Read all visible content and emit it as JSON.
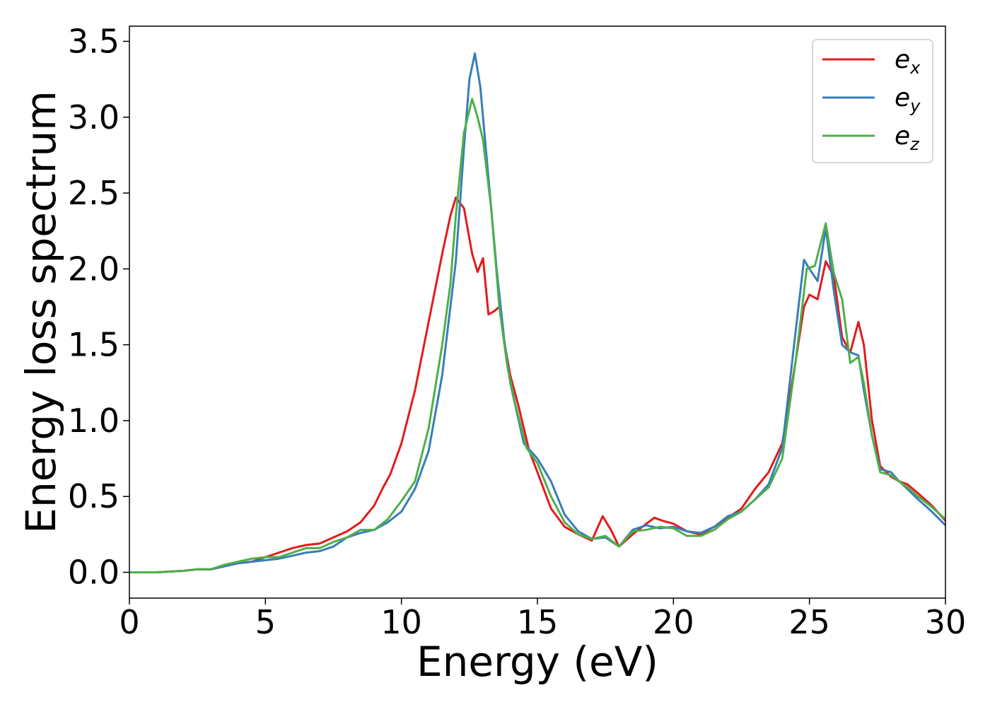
{
  "chart_data": {
    "type": "line",
    "title": "",
    "xlabel": "Energy (eV)",
    "ylabel": "Energy loss spectrum",
    "xlim": [
      0,
      30
    ],
    "ylim": [
      -0.17,
      3.6
    ],
    "xticks": [
      "0",
      "5",
      "10",
      "15",
      "20",
      "25",
      "30"
    ],
    "yticks": [
      "0.0",
      "0.5",
      "1.0",
      "1.5",
      "2.0",
      "2.5",
      "3.0",
      "3.5"
    ],
    "grid": false,
    "legend_position": "top-right",
    "series": [
      {
        "name": "e_x",
        "label_base": "e",
        "label_sub": "x",
        "color": "#e41a1c",
        "x": [
          0,
          1,
          2,
          2.5,
          3,
          3.5,
          4,
          4.5,
          5,
          5.5,
          6,
          6.5,
          7,
          7.5,
          8,
          8.5,
          9,
          9.3,
          9.6,
          10,
          10.5,
          11,
          11.5,
          11.8,
          12,
          12.3,
          12.6,
          12.8,
          13,
          13.2,
          13.4,
          13.6,
          13.8,
          14,
          14.3,
          14.7,
          15,
          15.5,
          16,
          16.5,
          17,
          17.4,
          17.7,
          18,
          18.5,
          19,
          19.3,
          19.6,
          20,
          20.5,
          21,
          21.5,
          22,
          22.5,
          23,
          23.5,
          24,
          24.5,
          24.8,
          25,
          25.3,
          25.6,
          25.9,
          26.2,
          26.5,
          26.8,
          27,
          27.3,
          27.6,
          28,
          28.3,
          28.6,
          29,
          29.5,
          30
        ],
        "y": [
          0,
          0,
          0.01,
          0.02,
          0.02,
          0.04,
          0.06,
          0.07,
          0.1,
          0.13,
          0.16,
          0.18,
          0.19,
          0.23,
          0.27,
          0.33,
          0.44,
          0.55,
          0.65,
          0.85,
          1.2,
          1.65,
          2.1,
          2.35,
          2.47,
          2.4,
          2.1,
          1.98,
          2.07,
          1.7,
          1.72,
          1.75,
          1.5,
          1.3,
          1.1,
          0.8,
          0.66,
          0.42,
          0.3,
          0.25,
          0.21,
          0.37,
          0.28,
          0.17,
          0.25,
          0.32,
          0.36,
          0.34,
          0.32,
          0.27,
          0.25,
          0.3,
          0.36,
          0.42,
          0.55,
          0.66,
          0.85,
          1.4,
          1.75,
          1.83,
          1.8,
          2.05,
          1.95,
          1.55,
          1.45,
          1.65,
          1.5,
          1.0,
          0.7,
          0.63,
          0.6,
          0.58,
          0.52,
          0.44,
          0.34
        ]
      },
      {
        "name": "e_y",
        "label_base": "e",
        "label_sub": "y",
        "color": "#377eb8",
        "x": [
          0,
          1,
          2,
          2.5,
          3,
          3.5,
          4,
          4.5,
          5,
          5.5,
          6,
          6.5,
          7,
          7.5,
          8,
          8.5,
          9,
          9.5,
          10,
          10.5,
          11,
          11.5,
          12,
          12.3,
          12.5,
          12.7,
          12.9,
          13.2,
          13.5,
          13.8,
          14,
          14.5,
          15,
          15.5,
          16,
          16.5,
          17,
          17.5,
          18,
          18.5,
          19,
          19.5,
          20,
          20.5,
          21,
          21.5,
          22,
          22.5,
          23,
          23.5,
          24,
          24.5,
          24.8,
          25,
          25.3,
          25.6,
          25.9,
          26.2,
          26.5,
          26.8,
          27,
          27.3,
          27.6,
          28,
          28.3,
          28.6,
          29,
          29.5,
          30
        ],
        "y": [
          0,
          0,
          0.01,
          0.02,
          0.02,
          0.04,
          0.06,
          0.07,
          0.08,
          0.09,
          0.11,
          0.13,
          0.14,
          0.17,
          0.23,
          0.26,
          0.28,
          0.33,
          0.4,
          0.55,
          0.8,
          1.3,
          2.05,
          2.8,
          3.25,
          3.42,
          3.2,
          2.6,
          2.0,
          1.5,
          1.25,
          0.85,
          0.75,
          0.6,
          0.38,
          0.27,
          0.22,
          0.23,
          0.17,
          0.28,
          0.31,
          0.29,
          0.3,
          0.27,
          0.26,
          0.3,
          0.37,
          0.4,
          0.48,
          0.58,
          0.82,
          1.6,
          2.06,
          2.0,
          1.92,
          2.27,
          1.85,
          1.5,
          1.45,
          1.43,
          1.2,
          0.9,
          0.68,
          0.66,
          0.6,
          0.55,
          0.48,
          0.4,
          0.31
        ]
      },
      {
        "name": "e_z",
        "label_base": "e",
        "label_sub": "z",
        "color": "#4daf4a",
        "x": [
          0,
          1,
          2,
          2.5,
          3,
          3.5,
          4,
          4.5,
          5,
          5.5,
          6,
          6.5,
          7,
          7.5,
          8,
          8.5,
          9,
          9.5,
          10,
          10.5,
          11,
          11.5,
          11.8,
          12,
          12.3,
          12.6,
          12.8,
          13,
          13.3,
          13.6,
          13.9,
          14.2,
          14.6,
          15,
          15.5,
          16,
          16.5,
          17,
          17.5,
          18,
          18.5,
          19,
          19.5,
          20,
          20.5,
          21,
          21.5,
          22,
          22.5,
          23,
          23.5,
          24,
          24.5,
          24.9,
          25.2,
          25.6,
          25.9,
          26.2,
          26.5,
          26.8,
          27,
          27.3,
          27.6,
          28,
          28.3,
          28.6,
          29,
          29.5,
          30
        ],
        "y": [
          0,
          0,
          0.01,
          0.02,
          0.02,
          0.05,
          0.07,
          0.09,
          0.1,
          0.1,
          0.13,
          0.16,
          0.16,
          0.2,
          0.23,
          0.28,
          0.28,
          0.35,
          0.47,
          0.6,
          0.95,
          1.5,
          1.9,
          2.35,
          2.9,
          3.12,
          3.0,
          2.85,
          2.4,
          1.75,
          1.35,
          1.1,
          0.82,
          0.72,
          0.5,
          0.33,
          0.25,
          0.22,
          0.24,
          0.17,
          0.27,
          0.28,
          0.3,
          0.29,
          0.24,
          0.24,
          0.28,
          0.35,
          0.4,
          0.48,
          0.56,
          0.75,
          1.4,
          2.0,
          2.02,
          2.3,
          1.97,
          1.8,
          1.38,
          1.42,
          1.25,
          0.9,
          0.66,
          0.64,
          0.6,
          0.56,
          0.5,
          0.43,
          0.35
        ]
      }
    ]
  }
}
